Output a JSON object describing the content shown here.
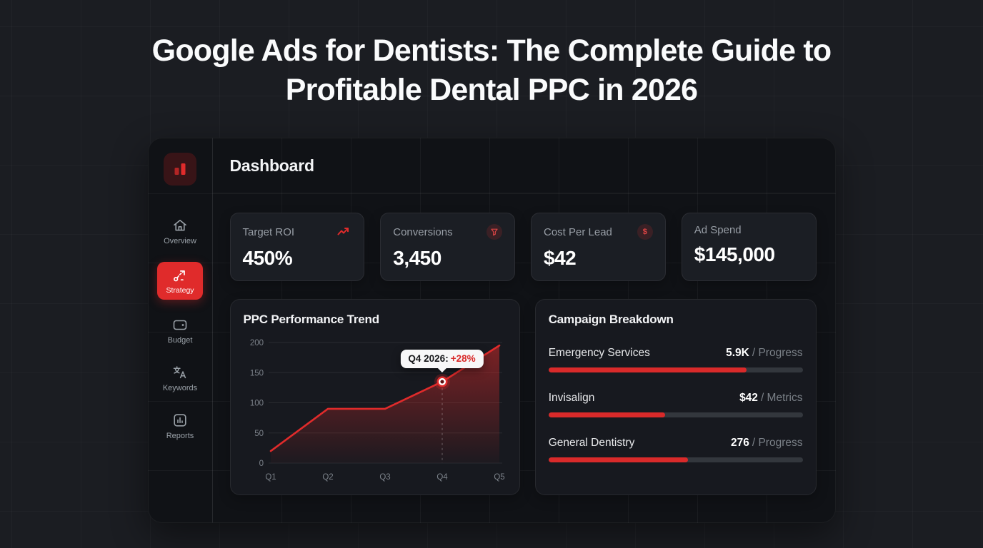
{
  "page": {
    "title": "Google Ads for Dentists: The Complete Guide to Profitable Dental PPC in 2026"
  },
  "dashboard": {
    "header_title": "Dashboard",
    "sidebar": {
      "logo_icon": "bar-chart-logo",
      "items": [
        {
          "label": "Overview",
          "icon": "home",
          "active": false
        },
        {
          "label": "Strategy",
          "icon": "route",
          "active": true
        },
        {
          "label": "Budget",
          "icon": "wallet",
          "active": false
        },
        {
          "label": "Keywords",
          "icon": "translate",
          "active": false
        },
        {
          "label": "Reports",
          "icon": "bar-chart",
          "active": false
        }
      ]
    },
    "stats": [
      {
        "label": "Target ROI",
        "value": "450%",
        "icon": "trending-up-icon"
      },
      {
        "label": "Conversions",
        "value": "3,450",
        "icon": "funnel-badge"
      },
      {
        "label": "Cost Per Lead",
        "value": "$42",
        "icon": "dollar-badge",
        "badge_text": "$"
      },
      {
        "label": "Ad Spend",
        "value": "$145,000"
      }
    ]
  },
  "chart_data": {
    "type": "line",
    "title": "PPC Performance Trend",
    "x": [
      "Q1",
      "Q2",
      "Q3",
      "Q4",
      "Q5"
    ],
    "values": [
      20,
      90,
      90,
      135,
      195
    ],
    "ylim": [
      0,
      200
    ],
    "yticks": [
      0,
      50,
      100,
      150,
      200
    ],
    "grid": true,
    "legend": "none",
    "line_color": "#e02b2b",
    "area_fill": true,
    "highlight": {
      "index": 3,
      "label": "Q4 2026:",
      "delta": "+28%",
      "delta_color": "#d92a2a"
    }
  },
  "campaign_breakdown": {
    "title": "Campaign Breakdown",
    "items": [
      {
        "name": "Emergency Services",
        "value": "5.9K",
        "suffix": "/ Progress",
        "pct": 78
      },
      {
        "name": "Invisalign",
        "value": "$42",
        "suffix": "/ Metrics",
        "pct": 46
      },
      {
        "name": "General Dentistry",
        "value": "276",
        "suffix": "/ Progress",
        "pct": 55
      }
    ],
    "bar_color": "#d92a2a",
    "track_color": "#33373d"
  },
  "colors": {
    "accent": "#e02b2b",
    "page_bg": "#1b1d22",
    "panel_bg": "#101216",
    "card_bg": "#1b1e24"
  }
}
